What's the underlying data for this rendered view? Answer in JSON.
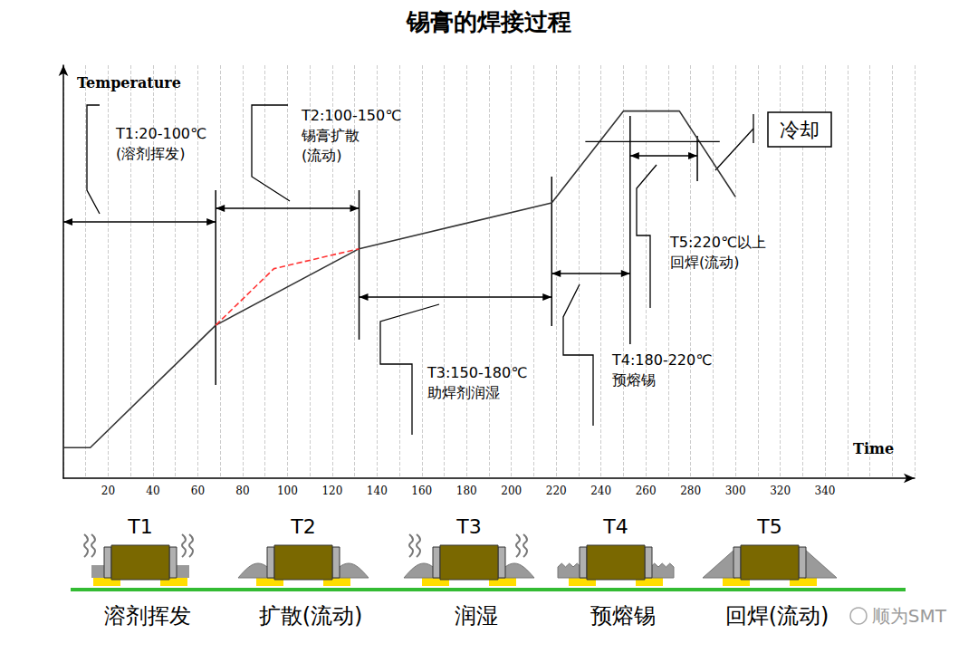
{
  "chart_data": {
    "type": "line",
    "title": "锡膏的焊接过程",
    "x_label": "Time",
    "y_label": "Temperature",
    "series": [
      {
        "color": "#333333",
        "line_style": "solid",
        "x": [
          0,
          12,
          68,
          132,
          218,
          250,
          275,
          300
        ],
        "values": [
          20,
          20,
          100,
          150,
          180,
          240,
          240,
          184
        ]
      },
      {
        "color": "#ff3333",
        "line_style": "dashed",
        "x": [
          68,
          94,
          132
        ],
        "values": [
          100,
          137,
          150
        ]
      }
    ],
    "xlim": [
      0,
      380
    ],
    "xticks": [
      20,
      40,
      60,
      80,
      100,
      120,
      140,
      160,
      180,
      200,
      220,
      240,
      260,
      280,
      300,
      320,
      340
    ],
    "ylim": [
      0,
      270
    ],
    "tick_labels": "x",
    "grid": true,
    "reference_line": {
      "value": 220,
      "x": [
        233,
        293
      ]
    },
    "zones": [
      {
        "label_lines": [
          "T1:20-100℃",
          "(溶剂挥发)"
        ],
        "start": 0,
        "end": 68
      },
      {
        "label_lines": [
          "T2:100-150℃",
          "锡膏扩散",
          "(流动)"
        ],
        "start": 68,
        "end": 132
      },
      {
        "label_lines": [
          "T3:150-180℃",
          "助焊剂润湿"
        ],
        "start": 132,
        "end": 218
      },
      {
        "label_lines": [
          "T4:180-220℃",
          "预熔锡"
        ],
        "start": 218,
        "end": 253
      },
      {
        "label_lines": [
          "T5:220℃以上",
          "回焊(流动)"
        ],
        "start": 253,
        "end": 283
      }
    ],
    "cooling_label": "冷却",
    "stages": [
      {
        "label": "T1",
        "caption": "溶剂挥发"
      },
      {
        "label": "T2",
        "caption": "扩散(流动)"
      },
      {
        "label": "T3",
        "caption": "润湿"
      },
      {
        "label": "T4",
        "caption": "预熔锡"
      },
      {
        "label": "T5",
        "caption": "回焊(流动)"
      }
    ],
    "watermark": "顺为SMT"
  }
}
